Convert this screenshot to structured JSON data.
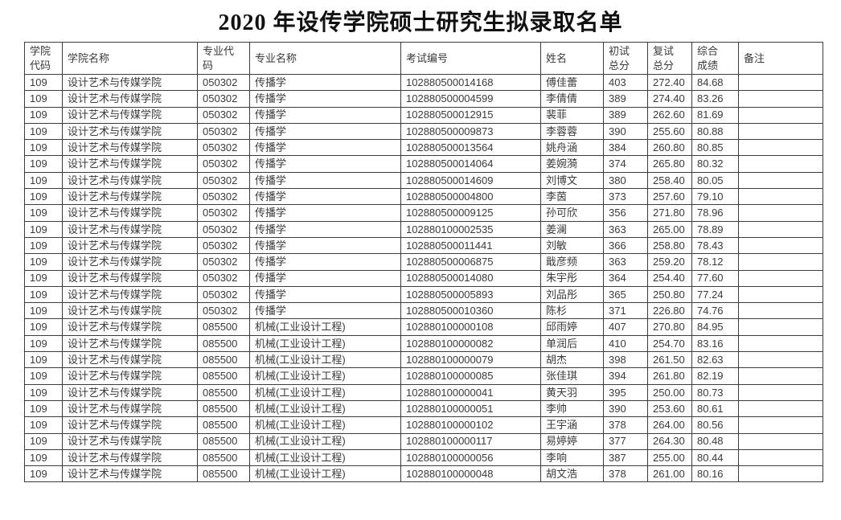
{
  "page": {
    "title": "2020 年设传学院硕士研究生拟录取名单"
  },
  "table": {
    "headers": [
      "学院\n代码",
      "学院名称",
      "专业代\n码",
      "专业名称",
      "考试编号",
      "姓名",
      "初试\n总分",
      "复试\n总分",
      "综合\n成绩",
      "备注"
    ],
    "column_keys": [
      "college-code",
      "college-name",
      "major-code",
      "major-name",
      "exam-id",
      "name",
      "initial-score",
      "retest-score",
      "overall-score",
      "remark"
    ],
    "rows": [
      [
        "109",
        "设计艺术与传媒学院",
        "050302",
        "传播学",
        "102880500014168",
        "傅佳蕾",
        "403",
        "272.40",
        "84.68",
        ""
      ],
      [
        "109",
        "设计艺术与传媒学院",
        "050302",
        "传播学",
        "102880500004599",
        "李倩倩",
        "389",
        "274.40",
        "83.26",
        ""
      ],
      [
        "109",
        "设计艺术与传媒学院",
        "050302",
        "传播学",
        "102880500012915",
        "裴菲",
        "389",
        "262.60",
        "81.69",
        ""
      ],
      [
        "109",
        "设计艺术与传媒学院",
        "050302",
        "传播学",
        "102880500009873",
        "李蓉蓉",
        "390",
        "255.60",
        "80.88",
        ""
      ],
      [
        "109",
        "设计艺术与传媒学院",
        "050302",
        "传播学",
        "102880500013564",
        "姚舟涵",
        "384",
        "260.80",
        "80.85",
        ""
      ],
      [
        "109",
        "设计艺术与传媒学院",
        "050302",
        "传播学",
        "102880500014064",
        "姜婉漪",
        "374",
        "265.80",
        "80.32",
        ""
      ],
      [
        "109",
        "设计艺术与传媒学院",
        "050302",
        "传播学",
        "102880500014609",
        "刘博文",
        "380",
        "258.40",
        "80.05",
        ""
      ],
      [
        "109",
        "设计艺术与传媒学院",
        "050302",
        "传播学",
        "102880500004800",
        "李茵",
        "373",
        "257.60",
        "79.10",
        ""
      ],
      [
        "109",
        "设计艺术与传媒学院",
        "050302",
        "传播学",
        "102880500009125",
        "孙可欣",
        "356",
        "271.80",
        "78.96",
        ""
      ],
      [
        "109",
        "设计艺术与传媒学院",
        "050302",
        "传播学",
        "102880100002535",
        "姜澜",
        "363",
        "265.00",
        "78.89",
        ""
      ],
      [
        "109",
        "设计艺术与传媒学院",
        "050302",
        "传播学",
        "102880500011441",
        "刘敏",
        "366",
        "258.80",
        "78.43",
        ""
      ],
      [
        "109",
        "设计艺术与传媒学院",
        "050302",
        "传播学",
        "102880500006875",
        "戢彦频",
        "363",
        "259.20",
        "78.12",
        ""
      ],
      [
        "109",
        "设计艺术与传媒学院",
        "050302",
        "传播学",
        "102880500014080",
        "朱宇彤",
        "364",
        "254.40",
        "77.60",
        ""
      ],
      [
        "109",
        "设计艺术与传媒学院",
        "050302",
        "传播学",
        "102880500005893",
        "刘品彤",
        "365",
        "250.80",
        "77.24",
        ""
      ],
      [
        "109",
        "设计艺术与传媒学院",
        "050302",
        "传播学",
        "102880500010360",
        "陈杉",
        "371",
        "226.80",
        "74.76",
        ""
      ],
      [
        "109",
        "设计艺术与传媒学院",
        "085500",
        "机械(工业设计工程)",
        "102880100000108",
        "邱雨婷",
        "407",
        "270.80",
        "84.95",
        ""
      ],
      [
        "109",
        "设计艺术与传媒学院",
        "085500",
        "机械(工业设计工程)",
        "102880100000082",
        "单润后",
        "410",
        "254.70",
        "83.16",
        ""
      ],
      [
        "109",
        "设计艺术与传媒学院",
        "085500",
        "机械(工业设计工程)",
        "102880100000079",
        "胡杰",
        "398",
        "261.50",
        "82.63",
        ""
      ],
      [
        "109",
        "设计艺术与传媒学院",
        "085500",
        "机械(工业设计工程)",
        "102880100000085",
        "张佳琪",
        "394",
        "261.80",
        "82.19",
        ""
      ],
      [
        "109",
        "设计艺术与传媒学院",
        "085500",
        "机械(工业设计工程)",
        "102880100000041",
        "黄天羽",
        "395",
        "250.00",
        "80.73",
        ""
      ],
      [
        "109",
        "设计艺术与传媒学院",
        "085500",
        "机械(工业设计工程)",
        "102880100000051",
        "李帅",
        "390",
        "253.60",
        "80.61",
        ""
      ],
      [
        "109",
        "设计艺术与传媒学院",
        "085500",
        "机械(工业设计工程)",
        "102880100000102",
        "王宇涵",
        "378",
        "264.00",
        "80.56",
        ""
      ],
      [
        "109",
        "设计艺术与传媒学院",
        "085500",
        "机械(工业设计工程)",
        "102880100000117",
        "易婷婷",
        "377",
        "264.30",
        "80.48",
        ""
      ],
      [
        "109",
        "设计艺术与传媒学院",
        "085500",
        "机械(工业设计工程)",
        "102880100000056",
        "李响",
        "387",
        "255.00",
        "80.44",
        ""
      ],
      [
        "109",
        "设计艺术与传媒学院",
        "085500",
        "机械(工业设计工程)",
        "102880100000048",
        "胡文浩",
        "378",
        "261.00",
        "80.16",
        ""
      ]
    ]
  }
}
